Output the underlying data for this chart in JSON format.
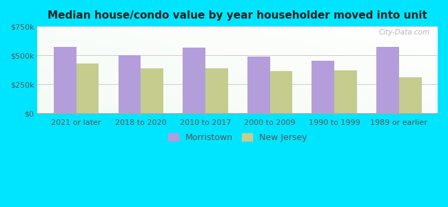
{
  "title": "Median house/condo value by year householder moved into unit",
  "categories": [
    "2021 or later",
    "2018 to 2020",
    "2010 to 2017",
    "2000 to 2009",
    "1990 to 1999",
    "1989 or earlier"
  ],
  "morristown_values": [
    575000,
    500000,
    565000,
    490000,
    455000,
    575000
  ],
  "newjersey_values": [
    430000,
    385000,
    390000,
    365000,
    370000,
    310000
  ],
  "morristown_color": "#b39ddb",
  "newjersey_color": "#c5cc8e",
  "background_outer": "#00e5ff",
  "ylim": [
    0,
    750000
  ],
  "yticks": [
    0,
    250000,
    500000,
    750000
  ],
  "ytick_labels": [
    "$0",
    "$250k",
    "$500k",
    "$750k"
  ],
  "legend_morristown": "Morristown",
  "legend_newjersey": "New Jersey",
  "watermark": "City-Data.com"
}
